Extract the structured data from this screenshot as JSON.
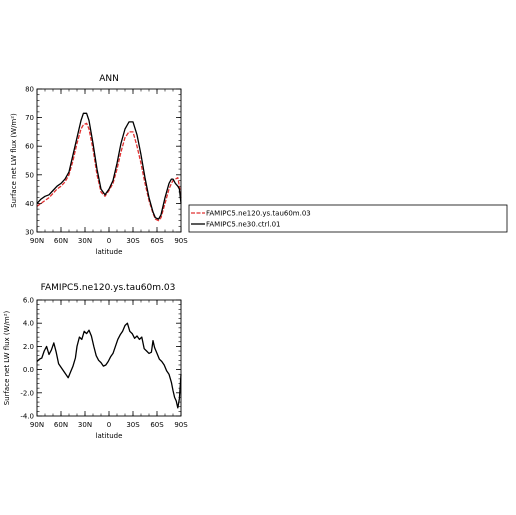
{
  "chart_data": [
    {
      "type": "line",
      "title": "ANN",
      "xlabel": "latitude",
      "ylabel": "Surface net LW flux (W/m²)",
      "x_tick_labels": [
        "90N",
        "60N",
        "30N",
        "0",
        "30S",
        "60S",
        "90S"
      ],
      "x_tick_values": [
        90,
        60,
        30,
        0,
        -30,
        -60,
        -90
      ],
      "xlim": [
        90,
        -90
      ],
      "ylim": [
        30,
        80
      ],
      "y_ticks": [
        30,
        40,
        50,
        60,
        70,
        80
      ],
      "y_tick_labels": [
        "30",
        "40",
        "50",
        "60",
        "70",
        "80"
      ],
      "legend_position": "right",
      "series": [
        {
          "name": "FAMIPC5.ne120.ys.tau60m.03",
          "color": "#e03030",
          "x": [
            90,
            85,
            80,
            75,
            70,
            65,
            60,
            55,
            50,
            45,
            40,
            35,
            32,
            28,
            25,
            20,
            15,
            10,
            5,
            0,
            -5,
            -10,
            -15,
            -20,
            -25,
            -30,
            -35,
            -40,
            -45,
            -50,
            -55,
            -58,
            -62,
            -65,
            -70,
            -75,
            -78,
            -80,
            -83,
            -86,
            -88,
            -90
          ],
          "y": [
            39,
            40,
            41,
            42,
            43.5,
            45,
            46,
            47.5,
            50,
            55,
            61,
            66,
            67.5,
            68,
            66,
            59,
            50,
            44,
            42.5,
            44.5,
            47,
            52,
            58,
            63,
            65,
            65,
            60,
            54,
            47,
            41,
            36.5,
            34.5,
            34,
            35,
            40,
            45,
            47,
            48,
            48.5,
            49,
            46,
            42
          ]
        },
        {
          "name": "FAMIPC5.ne30.ctrl.01",
          "color": "#000000",
          "x": [
            90,
            85,
            80,
            75,
            70,
            65,
            60,
            55,
            50,
            45,
            40,
            35,
            32,
            28,
            25,
            20,
            15,
            10,
            5,
            0,
            -5,
            -10,
            -15,
            -20,
            -25,
            -30,
            -35,
            -40,
            -45,
            -50,
            -55,
            -58,
            -62,
            -65,
            -70,
            -75,
            -78,
            -80,
            -83,
            -86,
            -88,
            -90
          ],
          "y": [
            40,
            41.5,
            42.5,
            43,
            44.5,
            46,
            47,
            48.5,
            51,
            57,
            63,
            69,
            71.5,
            71.5,
            69,
            61,
            52,
            45,
            43,
            45,
            48,
            54,
            61,
            66,
            68.5,
            68.5,
            64,
            57,
            49,
            42,
            37,
            35,
            34.5,
            36,
            42,
            47,
            48.5,
            48.5,
            47,
            46,
            45,
            40
          ]
        }
      ]
    },
    {
      "type": "line",
      "title": "FAMIPC5.ne120.ys.tau60m.03",
      "xlabel": "latitude",
      "ylabel": "Surface net LW flux (W/m²)",
      "x_tick_labels": [
        "90N",
        "60N",
        "30N",
        "0",
        "30S",
        "60S",
        "90S"
      ],
      "x_tick_values": [
        90,
        60,
        30,
        0,
        -30,
        -60,
        -90
      ],
      "xlim": [
        90,
        -90
      ],
      "ylim": [
        -4,
        6
      ],
      "y_ticks": [
        -4,
        -2,
        0,
        2,
        4,
        6
      ],
      "y_tick_labels": [
        "-4.0",
        "-2.0",
        "0.0",
        "2.0",
        "4.0",
        "6.0"
      ],
      "series": [
        {
          "name": "",
          "color": "#000000",
          "x": [
            90,
            87,
            84,
            81,
            78,
            75,
            72,
            69,
            66,
            63,
            60,
            57,
            54,
            51,
            48,
            45,
            42,
            40,
            37,
            34,
            31,
            28,
            25,
            22,
            19,
            16,
            13,
            10,
            7,
            4,
            1,
            -2,
            -5,
            -8,
            -11,
            -14,
            -17,
            -20,
            -23,
            -26,
            -29,
            -32,
            -35,
            -38,
            -41,
            -44,
            -47,
            -50,
            -53,
            -55,
            -57,
            -60,
            -63,
            -66,
            -69,
            -72,
            -75,
            -78,
            -80,
            -82,
            -84,
            -86,
            -88,
            -90
          ],
          "y": [
            0.7,
            0.9,
            1.0,
            1.6,
            2.0,
            1.3,
            1.7,
            2.3,
            1.5,
            0.5,
            0.2,
            -0.1,
            -0.4,
            -0.7,
            -0.2,
            0.3,
            1.0,
            2.0,
            2.8,
            2.6,
            3.3,
            3.1,
            3.4,
            2.9,
            2.0,
            1.2,
            0.8,
            0.6,
            0.3,
            0.4,
            0.7,
            1.1,
            1.4,
            2.0,
            2.6,
            3.0,
            3.3,
            3.8,
            4.0,
            3.3,
            3.1,
            2.7,
            2.9,
            2.6,
            2.8,
            1.8,
            1.6,
            1.4,
            1.5,
            2.5,
            1.9,
            1.4,
            0.9,
            0.7,
            0.4,
            -0.1,
            -0.4,
            -1.1,
            -1.8,
            -2.4,
            -2.7,
            -3.3,
            -2.5,
            -0.4
          ]
        }
      ]
    }
  ]
}
